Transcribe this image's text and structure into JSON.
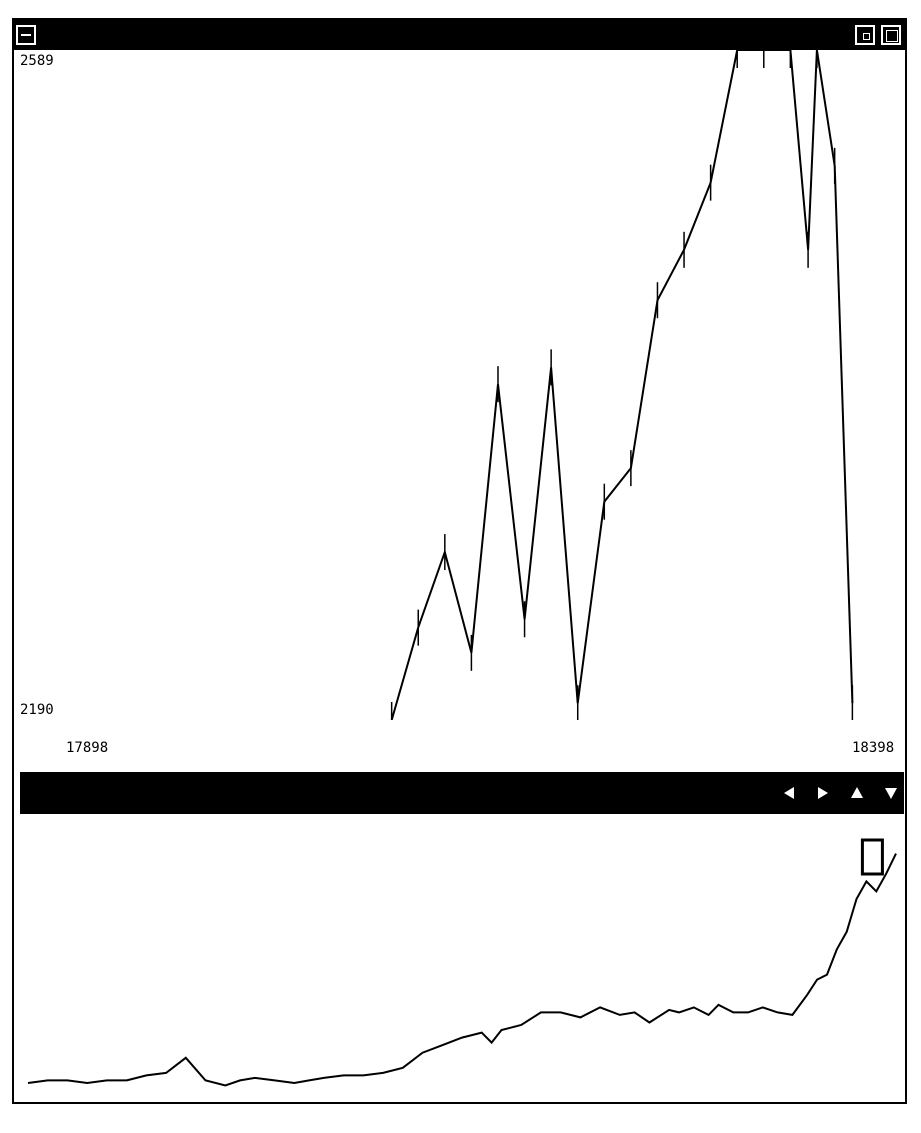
{
  "window": {
    "titlebar": {
      "title": "",
      "buttons": [
        "window-menu-icon",
        "iconify-icon",
        "maximize-icon"
      ]
    }
  },
  "main_plot": {
    "y_max_label": "2589",
    "y_min_label": "2190",
    "x_min_label": "17898",
    "x_max_label": "18398"
  },
  "navigator": {
    "buttons": [
      {
        "name": "scroll-left",
        "icon": "triangle-left-icon"
      },
      {
        "name": "scroll-right",
        "icon": "triangle-right-icon"
      },
      {
        "name": "zoom-in",
        "icon": "triangle-up-icon"
      },
      {
        "name": "zoom-out",
        "icon": "triangle-down-icon"
      }
    ]
  },
  "chart_data": [
    {
      "type": "line",
      "ylim": [
        2190,
        2589
      ],
      "xlim": [
        17898,
        18398
      ],
      "x": [
        18110,
        18125,
        18140,
        18155,
        18170,
        18185,
        18200,
        18215,
        18230,
        18245,
        18260,
        18275,
        18290,
        18305,
        18320,
        18335,
        18345,
        18350,
        18360,
        18370
      ],
      "values": [
        2190,
        2245,
        2290,
        2230,
        2390,
        2250,
        2400,
        2200,
        2320,
        2340,
        2440,
        2470,
        2510,
        2589,
        2589,
        2589,
        2470,
        2589,
        2520,
        2200
      ]
    },
    {
      "type": "line",
      "x": [
        0,
        20,
        40,
        60,
        80,
        100,
        120,
        140,
        160,
        180,
        200,
        215,
        230,
        250,
        270,
        285,
        300,
        320,
        340,
        360,
        380,
        400,
        420,
        440,
        460,
        470,
        480,
        500,
        520,
        540,
        560,
        580,
        600,
        615,
        630,
        650,
        660,
        675,
        690,
        700,
        715,
        730,
        745,
        760,
        775,
        790,
        800,
        810,
        820,
        830,
        840,
        850,
        860,
        870,
        880
      ],
      "values": [
        0.02,
        0.03,
        0.03,
        0.02,
        0.03,
        0.03,
        0.05,
        0.06,
        0.12,
        0.03,
        0.01,
        0.03,
        0.04,
        0.03,
        0.02,
        0.03,
        0.04,
        0.05,
        0.05,
        0.06,
        0.08,
        0.14,
        0.17,
        0.2,
        0.22,
        0.18,
        0.23,
        0.25,
        0.3,
        0.3,
        0.28,
        0.32,
        0.29,
        0.3,
        0.26,
        0.31,
        0.3,
        0.32,
        0.29,
        0.33,
        0.3,
        0.3,
        0.32,
        0.3,
        0.29,
        0.37,
        0.43,
        0.45,
        0.55,
        0.62,
        0.75,
        0.82,
        0.78,
        0.85,
        0.93
      ]
    }
  ]
}
